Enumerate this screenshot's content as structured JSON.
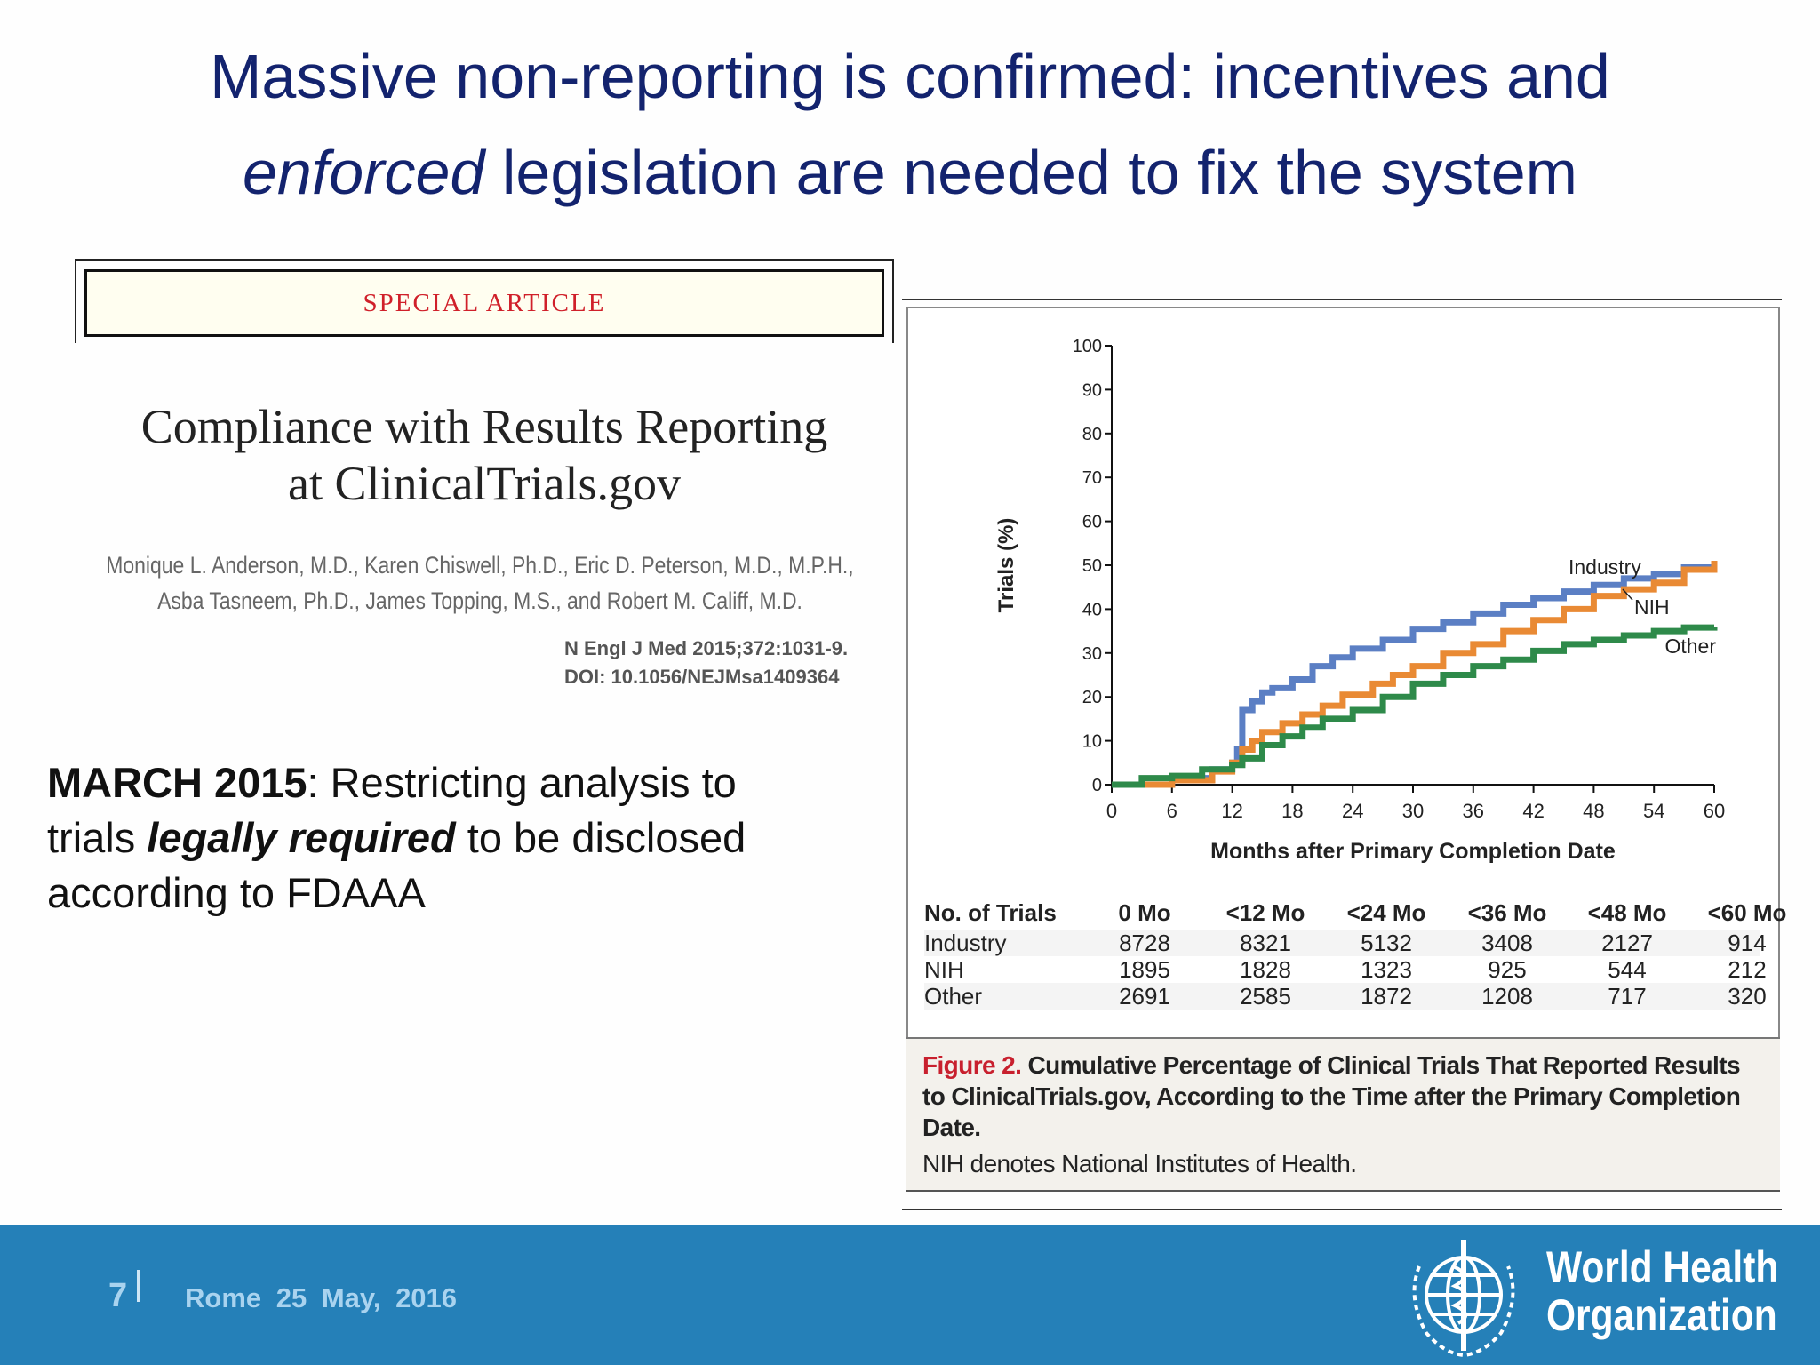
{
  "slide": {
    "title_line1": "Massive non-reporting is confirmed: incentives and",
    "title_line2_italic": "enforced",
    "title_line2_rest": " legislation are needed to fix the system"
  },
  "article": {
    "banner": "SPECIAL ARTICLE",
    "title_line1": "Compliance with Results Reporting",
    "title_line2": "at ClinicalTrials.gov",
    "authors_line1": "Monique L. Anderson, M.D., Karen Chiswell, Ph.D., Eric D. Peterson, M.D., M.P.H.,",
    "authors_line2": "Asba Tasneem, Ph.D., James Topping, M.S., and Robert M. Califf, M.D.",
    "citation": "N Engl J Med 2015;372:1031-9.",
    "doi": "DOI: 10.1056/NEJMsa1409364"
  },
  "note": {
    "bold_lead": "MARCH 2015",
    "text1": ": Restricting analysis to trials ",
    "bold_italic": "legally required",
    "text2": " to be disclosed according to FDAAA"
  },
  "chart_data": {
    "type": "line",
    "step": true,
    "xlabel": "Months after Primary Completion Date",
    "ylabel": "Trials (%)",
    "xlim": [
      0,
      60
    ],
    "ylim": [
      0,
      100
    ],
    "xticks": [
      0,
      6,
      12,
      18,
      24,
      30,
      36,
      42,
      48,
      54,
      60
    ],
    "yticks": [
      0,
      10,
      20,
      30,
      40,
      50,
      60,
      70,
      80,
      90,
      100
    ],
    "grid": false,
    "series": [
      {
        "name": "Industry",
        "color": "#5b7fc4",
        "x": [
          0,
          6,
          10,
          12,
          12.5,
          13,
          14,
          15,
          16,
          18,
          20,
          22,
          24,
          27,
          30,
          33,
          36,
          39,
          42,
          45,
          48,
          51,
          54,
          57,
          60
        ],
        "y": [
          0,
          1.5,
          3.5,
          5,
          8,
          17,
          19,
          21,
          22,
          24,
          27,
          29,
          31,
          33,
          35.5,
          37,
          39,
          41,
          42.5,
          44,
          45.5,
          47,
          48,
          49.5,
          50
        ]
      },
      {
        "name": "NIH",
        "color": "#e98a34",
        "x": [
          0,
          4,
          6,
          10,
          12,
          13,
          14,
          15,
          17,
          19,
          21,
          23,
          26,
          28,
          30,
          33,
          36,
          39,
          42,
          45,
          48,
          51,
          54,
          57,
          60
        ],
        "y": [
          0,
          0,
          1,
          3,
          5,
          8,
          10,
          12,
          14,
          16,
          18,
          20.5,
          23,
          25,
          27,
          30,
          32,
          35,
          37.5,
          40,
          43,
          44.5,
          46,
          49,
          51
        ]
      },
      {
        "name": "Other",
        "color": "#2e8a4a",
        "x": [
          0,
          3,
          6,
          9,
          12,
          13,
          15,
          17,
          19,
          21,
          24,
          27,
          30,
          33,
          36,
          39,
          42,
          45,
          48,
          51,
          54,
          57,
          60
        ],
        "y": [
          0,
          1.5,
          2,
          3.5,
          4.5,
          6,
          9,
          11,
          13,
          15,
          17,
          20,
          23,
          25,
          27,
          28.5,
          30.5,
          32,
          33,
          34,
          35,
          35.8,
          36
        ]
      }
    ],
    "table": {
      "header": [
        "No. of Trials",
        "0 Mo",
        "<12 Mo",
        "<24 Mo",
        "<36 Mo",
        "<48 Mo",
        "<60 Mo"
      ],
      "rows": [
        [
          "Industry",
          "8728",
          "8321",
          "5132",
          "3408",
          "2127",
          "914"
        ],
        [
          "NIH",
          "1895",
          "1828",
          "1323",
          "925",
          "544",
          "212"
        ],
        [
          "Other",
          "2691",
          "2585",
          "1872",
          "1208",
          "717",
          "320"
        ]
      ]
    },
    "caption_label": "Figure 2.",
    "caption_title": " Cumulative Percentage of Clinical Trials That Reported Results to ClinicalTrials.gov, According to the Time after the Primary Completion Date.",
    "caption_note": "NIH denotes National Institutes of Health."
  },
  "footer": {
    "page_number": "7",
    "location_date": "Rome 25 May, 2016",
    "logo_line1": "World Health",
    "logo_line2": "Organization",
    "color": "#2580b8"
  }
}
